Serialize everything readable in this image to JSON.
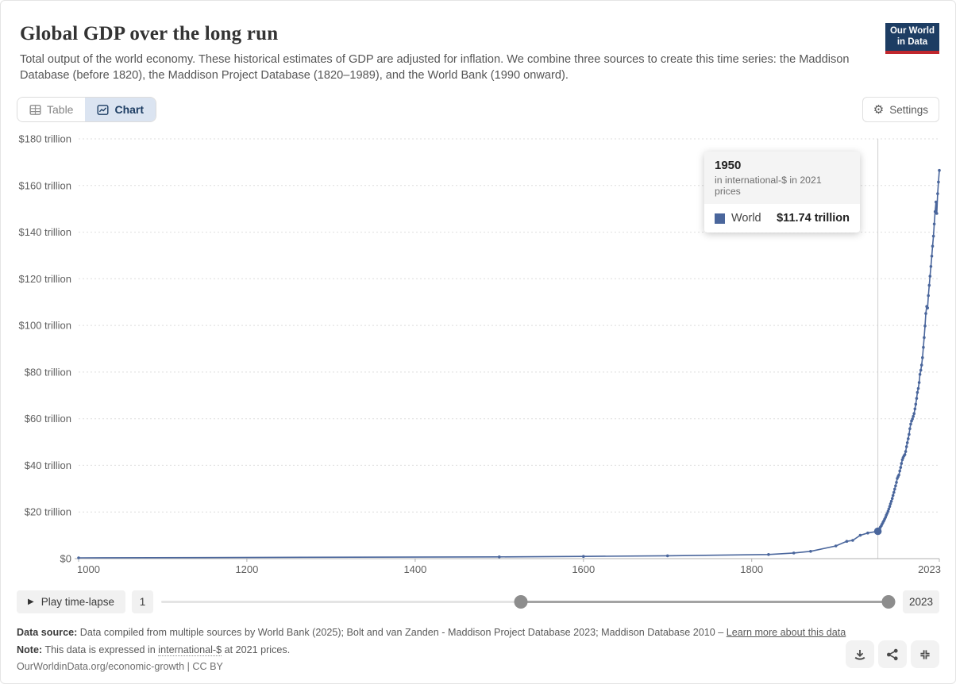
{
  "header": {
    "title": "Global GDP over the long run",
    "subtitle": "Total output of the world economy. These historical estimates of GDP are adjusted for inflation. We combine three sources to create this time series: the Maddison Database (before 1820), the Maddison Project Database (1820–1989), and the World Bank (1990 onward).",
    "logo_line1": "Our World",
    "logo_line2": "in Data"
  },
  "nav": {
    "table_tab": "Table",
    "chart_tab": "Chart",
    "settings_label": "Settings"
  },
  "tooltip": {
    "year": "1950",
    "unit_line": "in international-$ in 2021 prices",
    "series_label": "World",
    "value": "$11.74 trillion",
    "swatch_color": "#4a669c"
  },
  "chart_data": {
    "type": "line",
    "title": "Global GDP over the long run",
    "unit": "international-$ in 2021 prices",
    "xlim": [
      1000,
      2023
    ],
    "ylim": [
      0,
      180
    ],
    "x_ticks": [
      1000,
      1200,
      1400,
      1600,
      1800,
      2023
    ],
    "y_ticks": [
      0,
      20,
      40,
      60,
      80,
      100,
      120,
      140,
      160,
      180
    ],
    "y_tick_suffix": " trillion",
    "grid": "dashed-horizontal",
    "highlight": {
      "year": 1950,
      "value": 11.74,
      "label": "World",
      "formatted": "$11.74 trillion"
    },
    "series": [
      {
        "name": "World",
        "color": "#4a669c",
        "points": [
          [
            1000,
            0.35
          ],
          [
            1500,
            0.75
          ],
          [
            1600,
            0.95
          ],
          [
            1700,
            1.23
          ],
          [
            1820,
            1.76
          ],
          [
            1850,
            2.43
          ],
          [
            1870,
            3.14
          ],
          [
            1900,
            5.44
          ],
          [
            1913,
            7.41
          ],
          [
            1920,
            7.81
          ],
          [
            1929,
            10.0
          ],
          [
            1938,
            11.0
          ],
          [
            1950,
            11.74
          ],
          [
            1951,
            12.3
          ],
          [
            1952,
            12.9
          ],
          [
            1953,
            13.5
          ],
          [
            1954,
            14.1
          ],
          [
            1955,
            14.8
          ],
          [
            1956,
            15.5
          ],
          [
            1957,
            16.2
          ],
          [
            1958,
            16.9
          ],
          [
            1959,
            17.7
          ],
          [
            1960,
            18.6
          ],
          [
            1961,
            19.4
          ],
          [
            1962,
            20.3
          ],
          [
            1963,
            21.3
          ],
          [
            1964,
            22.4
          ],
          [
            1965,
            23.5
          ],
          [
            1966,
            24.6
          ],
          [
            1967,
            25.8
          ],
          [
            1968,
            27.1
          ],
          [
            1969,
            28.4
          ],
          [
            1970,
            29.8
          ],
          [
            1971,
            31.2
          ],
          [
            1972,
            32.7
          ],
          [
            1973,
            34.4
          ],
          [
            1974,
            35.2
          ],
          [
            1975,
            35.9
          ],
          [
            1976,
            37.6
          ],
          [
            1977,
            39.1
          ],
          [
            1978,
            40.8
          ],
          [
            1979,
            42.4
          ],
          [
            1980,
            43.3
          ],
          [
            1981,
            44.1
          ],
          [
            1982,
            44.6
          ],
          [
            1983,
            45.9
          ],
          [
            1984,
            48.0
          ],
          [
            1985,
            49.7
          ],
          [
            1986,
            51.4
          ],
          [
            1987,
            53.3
          ],
          [
            1988,
            55.7
          ],
          [
            1989,
            57.7
          ],
          [
            1990,
            59.0
          ],
          [
            1991,
            59.9
          ],
          [
            1992,
            61.0
          ],
          [
            1993,
            62.2
          ],
          [
            1994,
            64.2
          ],
          [
            1995,
            66.2
          ],
          [
            1996,
            68.7
          ],
          [
            1997,
            71.3
          ],
          [
            1998,
            73.0
          ],
          [
            1999,
            75.5
          ],
          [
            2000,
            79.0
          ],
          [
            2001,
            80.8
          ],
          [
            2002,
            83.0
          ],
          [
            2003,
            86.2
          ],
          [
            2004,
            90.6
          ],
          [
            2005,
            94.8
          ],
          [
            2006,
            99.8
          ],
          [
            2007,
            105.1
          ],
          [
            2008,
            108.1
          ],
          [
            2009,
            107.5
          ],
          [
            2010,
            112.8
          ],
          [
            2011,
            117.2
          ],
          [
            2012,
            121.1
          ],
          [
            2013,
            125.3
          ],
          [
            2014,
            129.7
          ],
          [
            2015,
            134.0
          ],
          [
            2016,
            138.3
          ],
          [
            2017,
            143.5
          ],
          [
            2018,
            148.8
          ],
          [
            2019,
            152.9
          ],
          [
            2020,
            148.0
          ],
          [
            2021,
            156.5
          ],
          [
            2022,
            161.5
          ],
          [
            2023,
            166.5
          ]
        ]
      }
    ]
  },
  "timeline": {
    "play_label": "Play time-lapse",
    "min_year": 1,
    "max_year": 2023,
    "start_label": "1",
    "end_label": "2023",
    "handle_start_year": 1000,
    "handle_end_year": 2023
  },
  "footer": {
    "source_prefix": "Data source:",
    "source_text": "Data compiled from multiple sources by World Bank (2025); Bolt and van Zanden - Maddison Project Database 2023; Maddison Database 2010",
    "source_sep": "–",
    "learn_more": "Learn more about this data",
    "note_prefix": "Note:",
    "note_before": "This data is expressed in",
    "note_underlined": "international-$",
    "note_after": "at 2021 prices.",
    "citation": "OurWorldinData.org/economic-growth | CC BY"
  },
  "colors": {
    "line": "#4a669c",
    "logo_navy": "#1d3d63",
    "logo_red": "#c0272d",
    "active_tab_bg": "#dbe4f1",
    "grid": "#dedede",
    "axis": "#b0b0b0",
    "highlight_line": "#d0d0d0"
  }
}
